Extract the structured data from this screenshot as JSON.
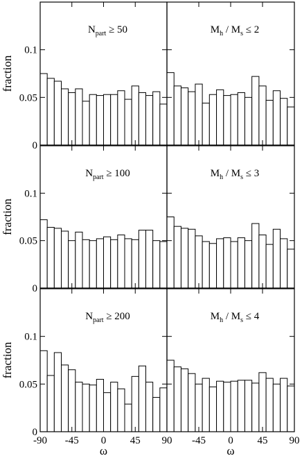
{
  "chart_data": {
    "type": "bar",
    "layout": {
      "rows": 3,
      "cols": 2,
      "shared_axes": true
    },
    "xlabel": "ω",
    "ylabel": "fraction",
    "xlim": [
      -90,
      90
    ],
    "ylim": [
      0,
      0.15
    ],
    "xticks": [
      -90,
      -45,
      0,
      45,
      90
    ],
    "yticks": [
      0,
      0.05,
      0.1
    ],
    "ytick_labels": [
      "0",
      "0.05",
      "0.1"
    ],
    "bin_edges": [
      -90,
      -80,
      -70,
      -60,
      -50,
      -40,
      -30,
      -20,
      -10,
      0,
      10,
      20,
      30,
      40,
      50,
      60,
      70,
      80,
      90
    ],
    "panels": [
      {
        "label_main": "N",
        "label_sub": "part",
        "label_rel": "≥ 50",
        "values": [
          0.075,
          0.07,
          0.067,
          0.059,
          0.055,
          0.059,
          0.046,
          0.053,
          0.052,
          0.053,
          0.053,
          0.057,
          0.048,
          0.062,
          0.055,
          0.052,
          0.056,
          0.043
        ]
      },
      {
        "label_main": "M",
        "label_sub": "h",
        "label_mid": " / M",
        "label_sub2": "s",
        "label_rel": "≤ 2",
        "values": [
          0.076,
          0.062,
          0.06,
          0.056,
          0.064,
          0.044,
          0.053,
          0.058,
          0.052,
          0.053,
          0.055,
          0.05,
          0.072,
          0.062,
          0.047,
          0.057,
          0.049,
          0.04
        ]
      },
      {
        "label_main": "N",
        "label_sub": "part",
        "label_rel": "≥ 100",
        "values": [
          0.072,
          0.064,
          0.063,
          0.06,
          0.05,
          0.059,
          0.051,
          0.05,
          0.052,
          0.054,
          0.051,
          0.056,
          0.052,
          0.051,
          0.061,
          0.061,
          0.05,
          0.049
        ]
      },
      {
        "label_main": "M",
        "label_sub": "h",
        "label_mid": " / M",
        "label_sub2": "s",
        "label_rel": "≤ 3",
        "values": [
          0.075,
          0.065,
          0.063,
          0.062,
          0.055,
          0.049,
          0.047,
          0.052,
          0.053,
          0.049,
          0.053,
          0.05,
          0.068,
          0.056,
          0.046,
          0.062,
          0.052,
          0.041
        ]
      },
      {
        "label_main": "N",
        "label_sub": "part",
        "label_rel": "≥ 200",
        "values": [
          0.085,
          0.059,
          0.083,
          0.07,
          0.065,
          0.052,
          0.05,
          0.049,
          0.055,
          0.041,
          0.052,
          0.045,
          0.029,
          0.058,
          0.069,
          0.052,
          0.036,
          0.046
        ]
      },
      {
        "label_main": "M",
        "label_sub": "h",
        "label_mid": " / M",
        "label_sub2": "s",
        "label_rel": "≤ 4",
        "values": [
          0.075,
          0.068,
          0.066,
          0.061,
          0.05,
          0.056,
          0.047,
          0.053,
          0.052,
          0.053,
          0.054,
          0.054,
          0.051,
          0.062,
          0.056,
          0.05,
          0.056,
          0.048
        ]
      }
    ]
  }
}
